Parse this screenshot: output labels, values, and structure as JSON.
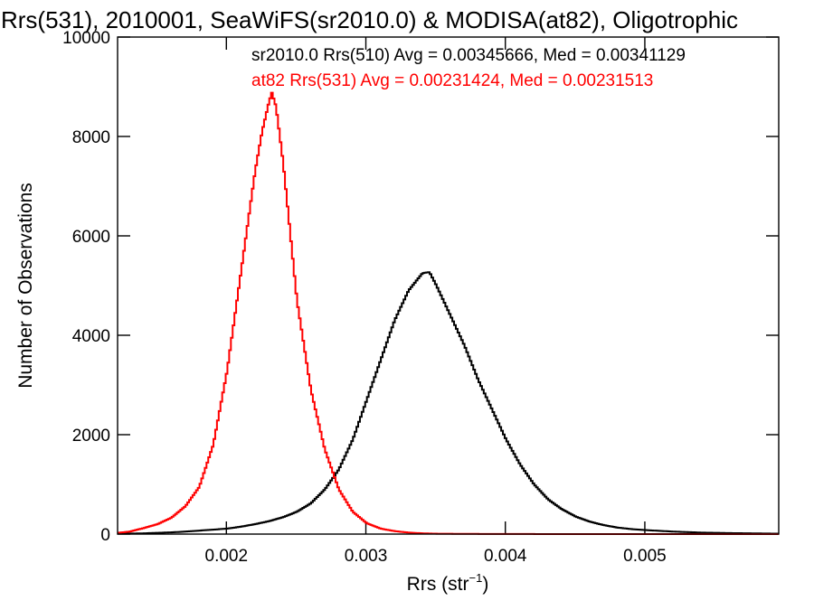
{
  "chart_data": {
    "type": "line",
    "title": "Rrs(531), 2010001, SeaWiFS(sr2010.0) & MODISA(at82), Oligotrophic",
    "xlabel_main": "Rrs (str",
    "xlabel_sup": "−1",
    "xlabel_end": ")",
    "ylabel": "Number of Observations",
    "xlim": [
      0.00122,
      0.00596
    ],
    "ylim": [
      0,
      10000
    ],
    "x_ticks": [
      0.002,
      0.003,
      0.004,
      0.005
    ],
    "x_tick_labels": [
      "0.002",
      "0.003",
      "0.004",
      "0.005"
    ],
    "y_ticks": [
      0,
      2000,
      4000,
      6000,
      8000,
      10000
    ],
    "y_tick_labels": [
      "0",
      "2000",
      "4000",
      "6000",
      "8000",
      "10000"
    ],
    "grid": false,
    "series": [
      {
        "name": "sr2010.0 Rrs(510)",
        "legend": "sr2010.0 Rrs(510) Avg = 0.00345666, Med = 0.00341129",
        "color": "#000000",
        "x": [
          0.0013,
          0.0014,
          0.0015,
          0.0016,
          0.0017,
          0.0018,
          0.0019,
          0.002,
          0.0021,
          0.0022,
          0.0023,
          0.0024,
          0.0025,
          0.0026,
          0.0027,
          0.0028,
          0.0029,
          0.003,
          0.0031,
          0.0032,
          0.0033,
          0.0034,
          0.00345,
          0.0035,
          0.0036,
          0.0037,
          0.0038,
          0.0039,
          0.004,
          0.0041,
          0.0042,
          0.0043,
          0.0044,
          0.0045,
          0.0046,
          0.0047,
          0.0048,
          0.0049,
          0.005,
          0.0052,
          0.0054,
          0.0056,
          0.0059
        ],
        "y": [
          10,
          15,
          25,
          35,
          50,
          70,
          90,
          110,
          150,
          200,
          260,
          340,
          450,
          620,
          900,
          1300,
          1900,
          2700,
          3500,
          4300,
          4900,
          5250,
          5270,
          5000,
          4400,
          3800,
          3100,
          2500,
          1900,
          1400,
          1000,
          700,
          500,
          350,
          250,
          180,
          130,
          100,
          80,
          50,
          30,
          20,
          10
        ]
      },
      {
        "name": "at82 Rrs(531)",
        "legend": "at82 Rrs(531) Avg = 0.00231424, Med = 0.00231513",
        "color": "#ff0000",
        "x": [
          0.0012,
          0.0013,
          0.0014,
          0.0015,
          0.0016,
          0.0017,
          0.0018,
          0.0019,
          0.002,
          0.0021,
          0.0022,
          0.00225,
          0.0023,
          0.00232,
          0.00235,
          0.0024,
          0.00245,
          0.0025,
          0.0026,
          0.0027,
          0.0028,
          0.0029,
          0.003,
          0.0031,
          0.0032,
          0.0033,
          0.0034,
          0.0035,
          0.0037,
          0.004,
          0.0045,
          0.005,
          0.0059
        ],
        "y": [
          20,
          50,
          120,
          200,
          330,
          560,
          950,
          1800,
          3300,
          5300,
          7300,
          8100,
          8700,
          8880,
          8600,
          7500,
          6100,
          4700,
          2900,
          1700,
          900,
          450,
          220,
          110,
          60,
          30,
          15,
          8,
          4,
          2,
          0,
          0,
          0
        ]
      }
    ]
  }
}
